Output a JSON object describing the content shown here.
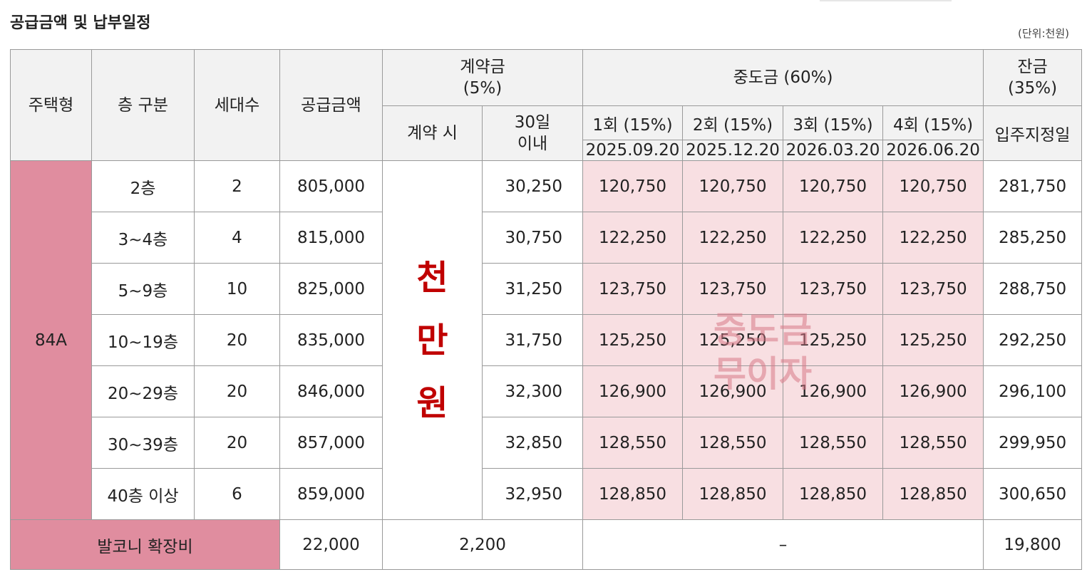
{
  "title": "공급금액 및 납부일정",
  "unit": "(단위:천원)",
  "header": {
    "type": "주택형",
    "floor": "층 구분",
    "households": "세대수",
    "supply": "공급금액",
    "contract": "계약금\n(5%)",
    "contract_on": "계약 시",
    "contract_30": "30일\n이내",
    "middle": "중도금 (60%)",
    "balance": "잔금\n(35%)",
    "balance_sub": "입주지정일",
    "installments": [
      {
        "label": "1회 (15%)",
        "date": "2025.09.20"
      },
      {
        "label": "2회 (15%)",
        "date": "2025.12.20"
      },
      {
        "label": "3회 (15%)",
        "date": "2026.03.20"
      },
      {
        "label": "4회 (15%)",
        "date": "2026.06.20"
      }
    ]
  },
  "type_label": "84A",
  "deposit_fixed": "천\n만\n원",
  "rows": [
    {
      "floor": "2층",
      "households": "2",
      "supply": "805,000",
      "contract_30": "30,250",
      "mid": [
        "120,750",
        "120,750",
        "120,750",
        "120,750"
      ],
      "balance": "281,750"
    },
    {
      "floor": "3~4층",
      "households": "4",
      "supply": "815,000",
      "contract_30": "30,750",
      "mid": [
        "122,250",
        "122,250",
        "122,250",
        "122,250"
      ],
      "balance": "285,250"
    },
    {
      "floor": "5~9층",
      "households": "10",
      "supply": "825,000",
      "contract_30": "31,250",
      "mid": [
        "123,750",
        "123,750",
        "123,750",
        "123,750"
      ],
      "balance": "288,750"
    },
    {
      "floor": "10~19층",
      "households": "20",
      "supply": "835,000",
      "contract_30": "31,750",
      "mid": [
        "125,250",
        "125,250",
        "125,250",
        "125,250"
      ],
      "balance": "292,250"
    },
    {
      "floor": "20~29층",
      "households": "20",
      "supply": "846,000",
      "contract_30": "32,300",
      "mid": [
        "126,900",
        "126,900",
        "126,900",
        "126,900"
      ],
      "balance": "296,100"
    },
    {
      "floor": "30~39층",
      "households": "20",
      "supply": "857,000",
      "contract_30": "32,850",
      "mid": [
        "128,550",
        "128,550",
        "128,550",
        "128,550"
      ],
      "balance": "299,950"
    },
    {
      "floor": "40층 이상",
      "households": "6",
      "supply": "859,000",
      "contract_30": "32,950",
      "mid": [
        "128,850",
        "128,850",
        "128,850",
        "128,850"
      ],
      "balance": "300,650"
    }
  ],
  "balcony": {
    "label": "발코니 확장비",
    "supply": "22,000",
    "contract": "2,200",
    "middle": "–",
    "balance": "19,800"
  },
  "overlay_text": "중도금\n무이자",
  "colors": {
    "type_bg": "#e08d9f",
    "mid_bg": "#f8dfe2",
    "red": "#c00000",
    "header_bg": "#f2f2f2"
  }
}
